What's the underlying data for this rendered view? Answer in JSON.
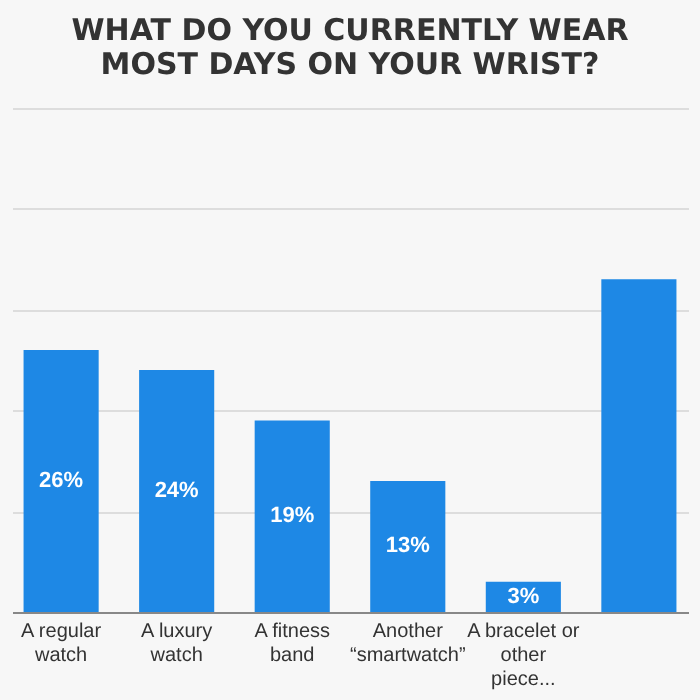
{
  "chart_data": {
    "type": "bar",
    "title": "WHAT DO YOU CURRENTLY WEAR MOST DAYS ON YOUR WRIST?",
    "categories": [
      "A regular watch",
      "A luxury watch",
      "A fitness band",
      "Another “smartwatch”",
      "A bracelet or other piece...",
      null
    ],
    "values": [
      26,
      24,
      19,
      13,
      3,
      33
    ],
    "value_labels": [
      "26%",
      "24%",
      "19%",
      "13%",
      "3%",
      null
    ],
    "color": "#1e88e5",
    "ylim": [
      0,
      50
    ],
    "yticks": [
      {
        "value": 0,
        "label": null
      },
      {
        "value": 10,
        "label": null
      },
      {
        "value": 20,
        "label": null
      },
      {
        "value": 30,
        "label": null
      },
      {
        "value": 40,
        "label": null
      },
      {
        "value": 50,
        "label": null
      }
    ],
    "grid": "y",
    "tick_labels": "x"
  }
}
